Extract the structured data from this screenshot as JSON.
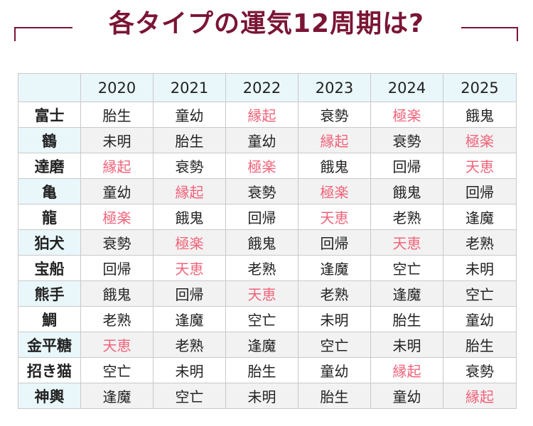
{
  "title": "各タイプの運気12周期は?",
  "colors": {
    "title": "#7a1535",
    "highlight": "#f0637a",
    "header_bg": "#e9f7fb",
    "alt_row_bg": "#f2f2f2",
    "text": "#222222"
  },
  "highlight_terms": [
    "縁起",
    "極楽",
    "天恵"
  ],
  "years": [
    "2020",
    "2021",
    "2022",
    "2023",
    "2024",
    "2025"
  ],
  "rows": [
    {
      "type": "富士",
      "cells": [
        "胎生",
        "童幼",
        "縁起",
        "衰勢",
        "極楽",
        "餓鬼"
      ]
    },
    {
      "type": "鶴",
      "cells": [
        "未明",
        "胎生",
        "童幼",
        "縁起",
        "衰勢",
        "極楽"
      ]
    },
    {
      "type": "達磨",
      "cells": [
        "縁起",
        "衰勢",
        "極楽",
        "餓鬼",
        "回帰",
        "天恵"
      ]
    },
    {
      "type": "亀",
      "cells": [
        "童幼",
        "縁起",
        "衰勢",
        "極楽",
        "餓鬼",
        "回帰"
      ]
    },
    {
      "type": "龍",
      "cells": [
        "極楽",
        "餓鬼",
        "回帰",
        "天恵",
        "老熟",
        "逢魔"
      ]
    },
    {
      "type": "狛犬",
      "cells": [
        "衰勢",
        "極楽",
        "餓鬼",
        "回帰",
        "天恵",
        "老熟"
      ]
    },
    {
      "type": "宝船",
      "cells": [
        "回帰",
        "天恵",
        "老熟",
        "逢魔",
        "空亡",
        "未明"
      ]
    },
    {
      "type": "熊手",
      "cells": [
        "餓鬼",
        "回帰",
        "天恵",
        "老熟",
        "逢魔",
        "空亡"
      ]
    },
    {
      "type": "鯛",
      "cells": [
        "老熟",
        "逢魔",
        "空亡",
        "未明",
        "胎生",
        "童幼"
      ]
    },
    {
      "type": "金平糖",
      "cells": [
        "天恵",
        "老熟",
        "逢魔",
        "空亡",
        "未明",
        "胎生"
      ]
    },
    {
      "type": "招き猫",
      "cells": [
        "空亡",
        "未明",
        "胎生",
        "童幼",
        "縁起",
        "衰勢"
      ]
    },
    {
      "type": "神輿",
      "cells": [
        "逢魔",
        "空亡",
        "未明",
        "胎生",
        "童幼",
        "縁起"
      ]
    }
  ]
}
